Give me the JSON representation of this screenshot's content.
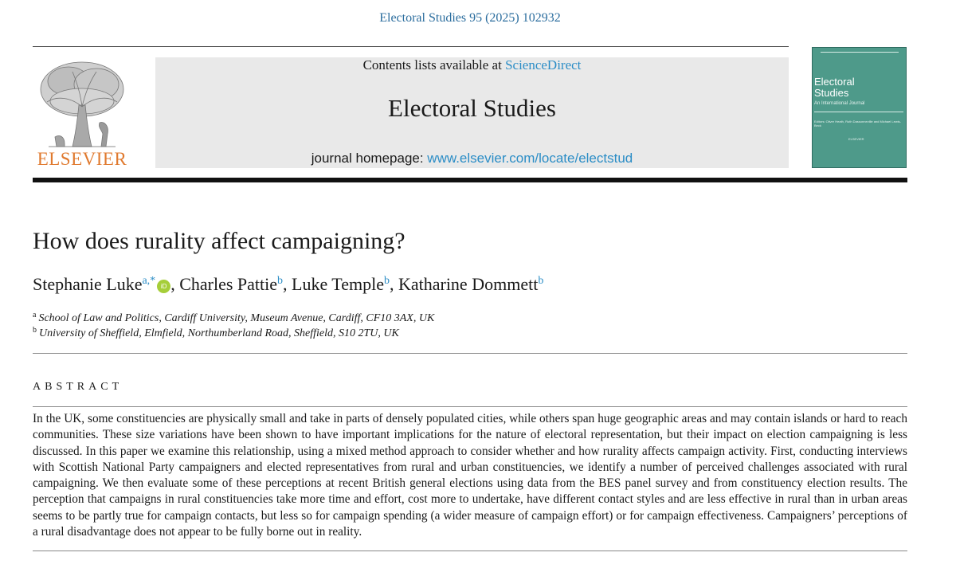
{
  "header": {
    "citation": "Electoral Studies 95 (2025) 102932",
    "contents_prefix": "Contents lists available at ",
    "contents_link": "ScienceDirect",
    "journal_title": "Electoral Studies",
    "homepage_prefix": "journal homepage: ",
    "homepage_link": "www.elsevier.com/locate/electstud",
    "publisher_word": "ELSEVIER"
  },
  "cover": {
    "title_line1": "Electoral",
    "title_line2": "Studies",
    "subtitle": "An International Journal",
    "editors": "Editors: Oliver Heath, Ruth Dassonneville and Michael Lewis-Beck",
    "imprint": "ELSEVIER",
    "color": "#4e9a8a"
  },
  "article": {
    "title": "How does rurality affect campaigning?",
    "authors": [
      {
        "name": "Stephanie Luke",
        "sup": "a,*",
        "orcid": true
      },
      {
        "name": "Charles Pattie",
        "sup": "b",
        "orcid": false
      },
      {
        "name": "Luke Temple",
        "sup": "b",
        "orcid": false
      },
      {
        "name": "Katharine Dommett",
        "sup": "b",
        "orcid": false
      }
    ],
    "orcid_label": "iD",
    "separator": ", ",
    "affiliations": [
      {
        "mark": "a",
        "text": "School of Law and Politics, Cardiff University, Museum Avenue, Cardiff, CF10 3AX, UK"
      },
      {
        "mark": "b",
        "text": "University of Sheffield, Elmfield, Northumberland Road, Sheffield, S10 2TU, UK"
      }
    ],
    "abstract_heading": "ABSTRACT",
    "abstract": "In the UK, some constituencies are physically small and take in parts of densely populated cities, while others span huge geographic areas and may contain islands or hard to reach communities. These size variations have been shown to have important implications for the nature of electoral representation, but their impact on election campaigning is less discussed. In this paper we examine this relationship, using a mixed method approach to consider whether and how rurality affects campaign activity. First, conducting interviews with Scottish National Party campaigners and elected representatives from rural and urban constituencies, we identify a number of perceived challenges associated with rural campaigning. We then evaluate some of these perceptions at recent British general elections using data from the BES panel survey and from constituency election results. The perception that campaigns in rural constituencies take more time and effort, cost more to undertake, have different contact styles and are less effective in rural than in urban areas seems to be partly true for campaign contacts, but less so for campaign spending (a wider measure of campaign effort) or for campaign effectiveness. Campaigners’ perceptions of a rural disadvantage does not appear to be fully borne out in reality."
  },
  "colors": {
    "link": "#2b8dc6",
    "citation": "#2b6d9e",
    "elsevier_orange": "#e07a2f",
    "orcid_green": "#a6ce39"
  }
}
